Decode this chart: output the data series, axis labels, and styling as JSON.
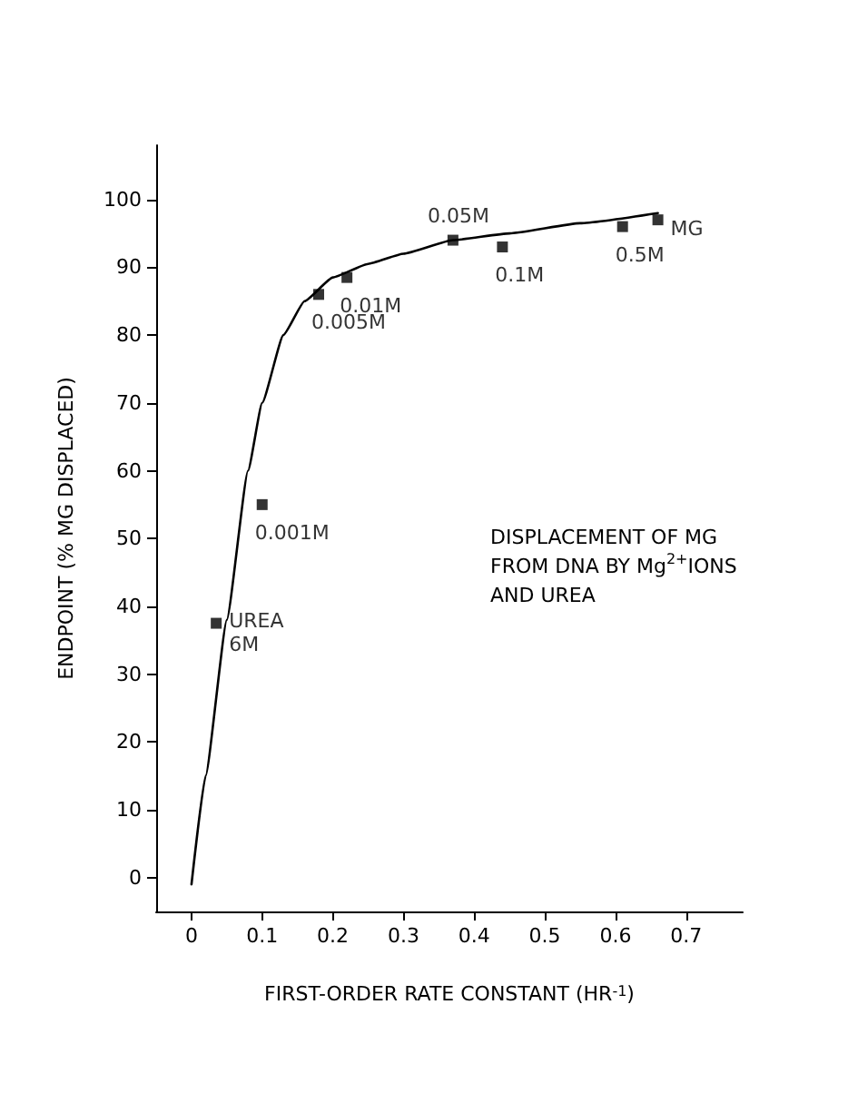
{
  "chart_data": {
    "type": "scatter",
    "xlabel": "FIRST-ORDER RATE CONSTANT (HR$^{-1}$)",
    "ylabel": "ENDPOINT (% MG DISPLACED)",
    "xlim": [
      -0.05,
      0.78
    ],
    "xticks": [
      0,
      0.1,
      0.2,
      0.3,
      0.4,
      0.5,
      0.6,
      0.7
    ],
    "ylim": [
      -5,
      108
    ],
    "yticks": [
      0,
      10,
      20,
      30,
      40,
      50,
      60,
      70,
      80,
      90,
      100
    ],
    "grid": false,
    "marker": "square",
    "series": [
      {
        "color": "#000000",
        "x": [
          0.035,
          0.1,
          0.18,
          0.22,
          0.37,
          0.44,
          0.61,
          0.66
        ],
        "values": [
          37.5,
          55,
          86,
          88.5,
          94,
          93,
          96,
          97
        ]
      },
      {
        "type": "line",
        "color": "#000000",
        "line_style": "solid",
        "marker": "none",
        "x": [
          0,
          0.02,
          0.05,
          0.08,
          0.1,
          0.13,
          0.16,
          0.2,
          0.25,
          0.3,
          0.37,
          0.45,
          0.55,
          0.66
        ],
        "values": [
          -1,
          15,
          38,
          60,
          70,
          80,
          85,
          88.5,
          90.5,
          92,
          94,
          95,
          96.5,
          98
        ]
      }
    ],
    "annotations": [
      {
        "text": "UREA\n6M",
        "x": 0.035,
        "y": 37.5
      },
      {
        "text": "0.001M",
        "x": 0.1,
        "y": 55
      },
      {
        "text": "0.005M",
        "x": 0.18,
        "y": 86
      },
      {
        "text": "0.01M",
        "x": 0.22,
        "y": 88.5
      },
      {
        "text": "0.05M",
        "x": 0.37,
        "y": 94
      },
      {
        "text": "0.1M",
        "x": 0.44,
        "y": 93
      },
      {
        "text": "0.5M",
        "x": 0.61,
        "y": 96
      },
      {
        "text": "MG",
        "x": 0.66,
        "y": 97
      },
      "DISPLACEMENT OF MG\nFROM DNA BY Mg$^{2+}$IONS\nAND UREA"
    ]
  }
}
